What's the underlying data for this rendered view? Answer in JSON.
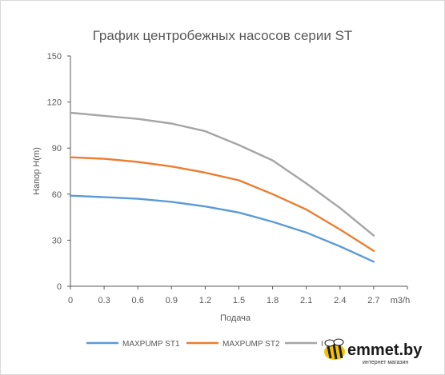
{
  "chart_data": {
    "type": "line",
    "title": "График центробежных насосов серии ST",
    "xlabel": "Подача",
    "ylabel": "Напор H(m)",
    "x_unit_label": "m3/h",
    "x": [
      0,
      0.3,
      0.6,
      0.9,
      1.2,
      1.5,
      1.8,
      2.1,
      2.4,
      2.7
    ],
    "x_tick_labels": [
      "0",
      "0.3",
      "0.6",
      "0.9",
      "1.2",
      "1.5",
      "1.8",
      "2.1",
      "2.4",
      "2.7"
    ],
    "y_ticks": [
      "0",
      "30",
      "60",
      "90",
      "120",
      "150"
    ],
    "xlim": [
      0,
      3.0
    ],
    "ylim": [
      0,
      150
    ],
    "grid": false,
    "legend_position": "bottom",
    "series": [
      {
        "name": "MAXPUMP ST1",
        "color": "#5b9bd5",
        "values": [
          59,
          58,
          57,
          55,
          52,
          48,
          42,
          35,
          26,
          16
        ]
      },
      {
        "name": "MAXPUMP ST2",
        "color": "#ed7d31",
        "values": [
          84,
          83,
          81,
          78,
          74,
          69,
          60,
          50,
          37,
          23
        ]
      },
      {
        "name": "I",
        "color": "#a5a5a5",
        "values": [
          113,
          111,
          109,
          106,
          101,
          92,
          82,
          67,
          51,
          33
        ]
      }
    ]
  },
  "watermark": {
    "brand": "emmet.by",
    "subtitle": "интернет магазин",
    "icon": "bee-icon"
  }
}
